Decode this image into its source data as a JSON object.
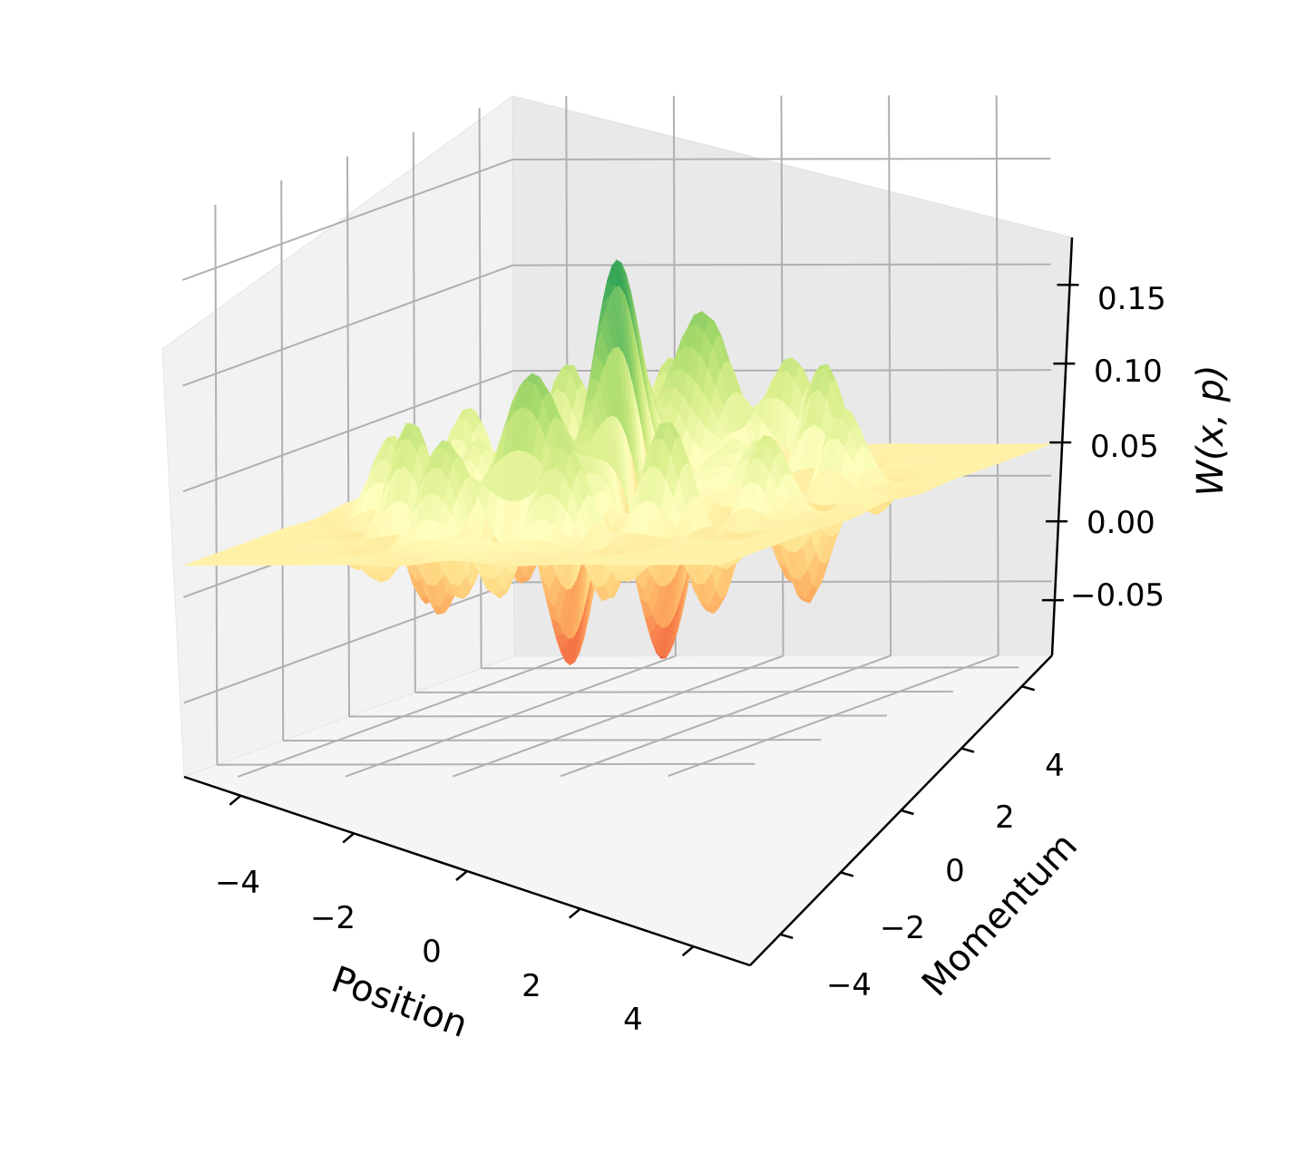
{
  "chart_data": {
    "type": "surface3d",
    "title": "",
    "xlabel": "Position",
    "ylabel": "Momentum",
    "zlabel": "W(x, p)",
    "x_ticks": [
      "−4",
      "−2",
      "0",
      "2",
      "4"
    ],
    "y_ticks": [
      "−4",
      "−2",
      "0",
      "2",
      "4"
    ],
    "z_ticks": [
      "−0.05",
      "0.00",
      "0.05",
      "0.10",
      "0.15"
    ],
    "xlim": [
      -5,
      5
    ],
    "ylim": [
      -5,
      5
    ],
    "zlim": [
      -0.085,
      0.18
    ],
    "z_range_observed": [
      -0.08,
      0.16
    ],
    "grid": true,
    "colormap": "RdYlGn",
    "colormap_stops": [
      "#a50026",
      "#f46d43",
      "#fdae61",
      "#fee08b",
      "#ffffbf",
      "#d9ef8b",
      "#a6d96a",
      "#66bd63",
      "#1a9850",
      "#006837"
    ]
  }
}
